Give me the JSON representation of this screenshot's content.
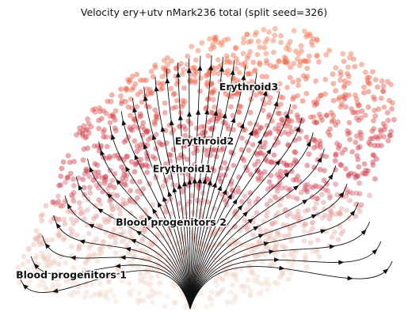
{
  "chart_data": {
    "type": "scatter",
    "title": "Velocity ery+utv nMark236 total (split seed=326)",
    "xlabel": "",
    "ylabel": "",
    "grid": false,
    "axes_visible": false,
    "overlay": "velocity-streamlines",
    "clusters": [
      {
        "name": "Blood progenitors 1",
        "x": -1.2,
        "y": -0.85,
        "color": "#f2d4c4"
      },
      {
        "name": "Blood progenitors 2",
        "x": -0.3,
        "y": -0.32,
        "color": "#e9b9a8"
      },
      {
        "name": "Erythroid1",
        "x": -0.2,
        "y": 0.22,
        "color": "#c9303f"
      },
      {
        "name": "Erythroid2",
        "x": 0.0,
        "y": 0.5,
        "color": "#d9574a"
      },
      {
        "name": "Erythroid3",
        "x": 0.4,
        "y": 1.05,
        "color": "#ef6a43"
      }
    ]
  }
}
